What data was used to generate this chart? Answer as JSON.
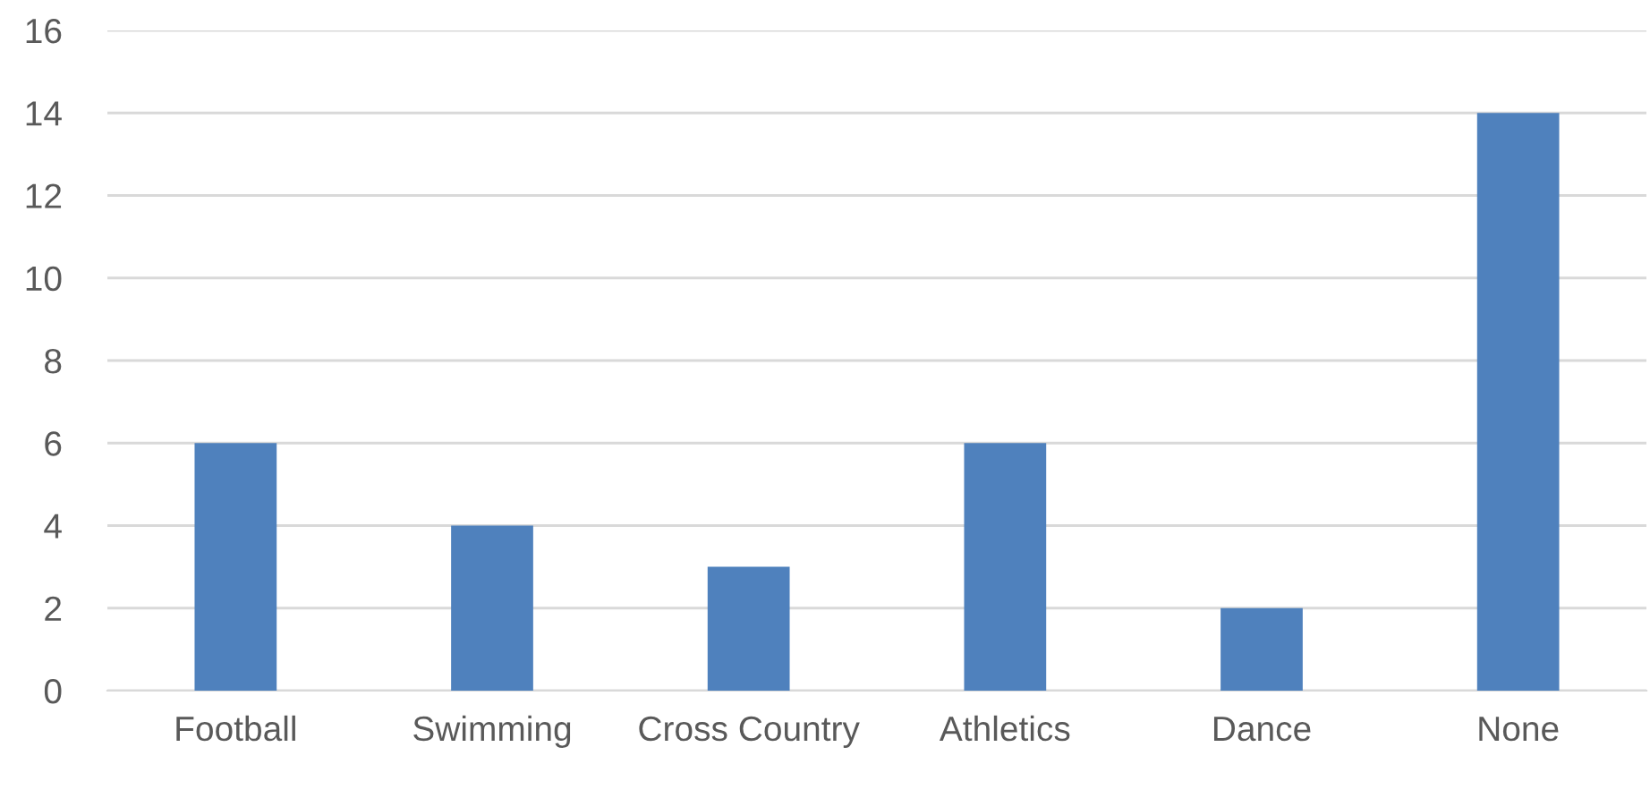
{
  "chart_data": {
    "type": "bar",
    "categories": [
      "Football",
      "Swimming",
      "Cross Country",
      "Athletics",
      "Dance",
      "None"
    ],
    "values": [
      6,
      4,
      3,
      6,
      2,
      14
    ],
    "color": "#4f81bd",
    "ylim": [
      0,
      16
    ],
    "yticks": [
      0,
      2,
      4,
      6,
      8,
      10,
      12,
      14,
      16
    ],
    "grid": "y",
    "legend": false
  }
}
